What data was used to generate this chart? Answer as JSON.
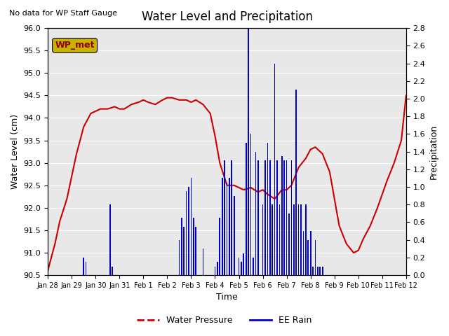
{
  "title": "Water Level and Precipitation",
  "subtitle": "No data for WP Staff Gauge",
  "ylabel_left": "Water Level (cm)",
  "ylabel_right": "Precipitation",
  "xlabel": "Time",
  "legend_label1": "Water Pressure",
  "legend_label2": "EE Rain",
  "wp_legend_label": "WP_met",
  "ylim_left": [
    90.5,
    96.0
  ],
  "ylim_right": [
    0.0,
    2.8
  ],
  "yticks_left": [
    90.5,
    91.0,
    91.5,
    92.0,
    92.5,
    93.0,
    93.5,
    94.0,
    94.5,
    95.0,
    95.5,
    96.0
  ],
  "yticks_right": [
    0.0,
    0.2,
    0.4,
    0.6,
    0.8,
    1.0,
    1.2,
    1.4,
    1.6,
    1.8,
    2.0,
    2.2,
    2.4,
    2.6,
    2.8
  ],
  "background_color": "#e8e8e8",
  "line_color_wp": "#cc0000",
  "bar_color_rain": "#0000cc",
  "wp_box_color": "#c8b400",
  "wp_box_text_color": "#8b0000",
  "xtick_labels": [
    "Jan 28",
    "Jan 29",
    "Jan 30",
    "Jan 31",
    "Feb 1",
    "Feb 2",
    "Feb 3",
    "Feb 4",
    "Feb 5",
    "Feb 6",
    "Feb 7",
    "Feb 8",
    "Feb 9",
    "Feb 10",
    "Feb 11",
    "Feb 12"
  ],
  "water_pressure_x": [
    0,
    0.1,
    0.3,
    0.5,
    0.8,
    1.0,
    1.2,
    1.5,
    1.8,
    2.0,
    2.2,
    2.5,
    2.8,
    3.0,
    3.2,
    3.5,
    3.8,
    4.0,
    4.2,
    4.5,
    4.8,
    5.0,
    5.2,
    5.5,
    5.8,
    6.0,
    6.2,
    6.5,
    6.8,
    7.0,
    7.2,
    7.5,
    7.8,
    8.0,
    8.2,
    8.5,
    8.8,
    9.0,
    9.2,
    9.5,
    9.8,
    10.0,
    10.2,
    10.5,
    10.8,
    11.0,
    11.2,
    11.5,
    11.8,
    12.0,
    12.2,
    12.5,
    12.8,
    13.0,
    13.2,
    13.5,
    13.8,
    14.0,
    14.2,
    14.5,
    14.8,
    15.0
  ],
  "water_pressure_y": [
    90.6,
    90.8,
    91.2,
    91.7,
    92.2,
    92.7,
    93.2,
    93.8,
    94.1,
    94.15,
    94.2,
    94.2,
    94.25,
    94.2,
    94.2,
    94.3,
    94.35,
    94.4,
    94.35,
    94.3,
    94.4,
    94.45,
    94.45,
    94.4,
    94.4,
    94.35,
    94.4,
    94.3,
    94.1,
    93.6,
    93.0,
    92.5,
    92.5,
    92.45,
    92.4,
    92.45,
    92.35,
    92.4,
    92.3,
    92.2,
    92.4,
    92.4,
    92.5,
    92.9,
    93.1,
    93.3,
    93.35,
    93.2,
    92.8,
    92.2,
    91.6,
    91.2,
    91.0,
    91.05,
    91.3,
    91.6,
    92.0,
    92.3,
    92.6,
    93.0,
    93.5,
    94.5
  ],
  "rain_x": [
    1.5,
    1.6,
    2.6,
    2.7,
    5.5,
    5.6,
    5.7,
    5.8,
    5.9,
    6.0,
    6.1,
    6.2,
    6.5,
    7.0,
    7.1,
    7.2,
    7.3,
    7.4,
    7.5,
    7.6,
    7.7,
    7.8,
    8.0,
    8.1,
    8.2,
    8.3,
    8.4,
    8.5,
    8.6,
    8.7,
    8.8,
    9.0,
    9.1,
    9.2,
    9.3,
    9.4,
    9.5,
    9.6,
    9.7,
    9.8,
    9.9,
    10.0,
    10.1,
    10.2,
    10.3,
    10.4,
    10.5,
    10.6,
    10.7,
    10.8,
    10.9,
    11.0,
    11.1,
    11.2,
    11.3,
    11.4,
    11.5
  ],
  "rain_y": [
    0.2,
    0.15,
    0.8,
    0.1,
    0.4,
    0.65,
    0.55,
    0.95,
    1.0,
    1.1,
    0.65,
    0.55,
    0.3,
    0.1,
    0.15,
    0.65,
    1.1,
    1.3,
    1.05,
    1.1,
    1.3,
    0.9,
    0.2,
    0.15,
    0.25,
    1.5,
    2.8,
    1.6,
    0.2,
    1.4,
    1.3,
    0.8,
    1.3,
    1.5,
    1.3,
    0.8,
    2.4,
    1.3,
    0.8,
    1.35,
    1.3,
    1.3,
    0.7,
    1.3,
    0.8,
    2.1,
    0.8,
    0.8,
    0.5,
    0.8,
    0.4,
    0.5,
    0.1,
    0.4,
    0.1,
    0.1,
    0.1
  ]
}
